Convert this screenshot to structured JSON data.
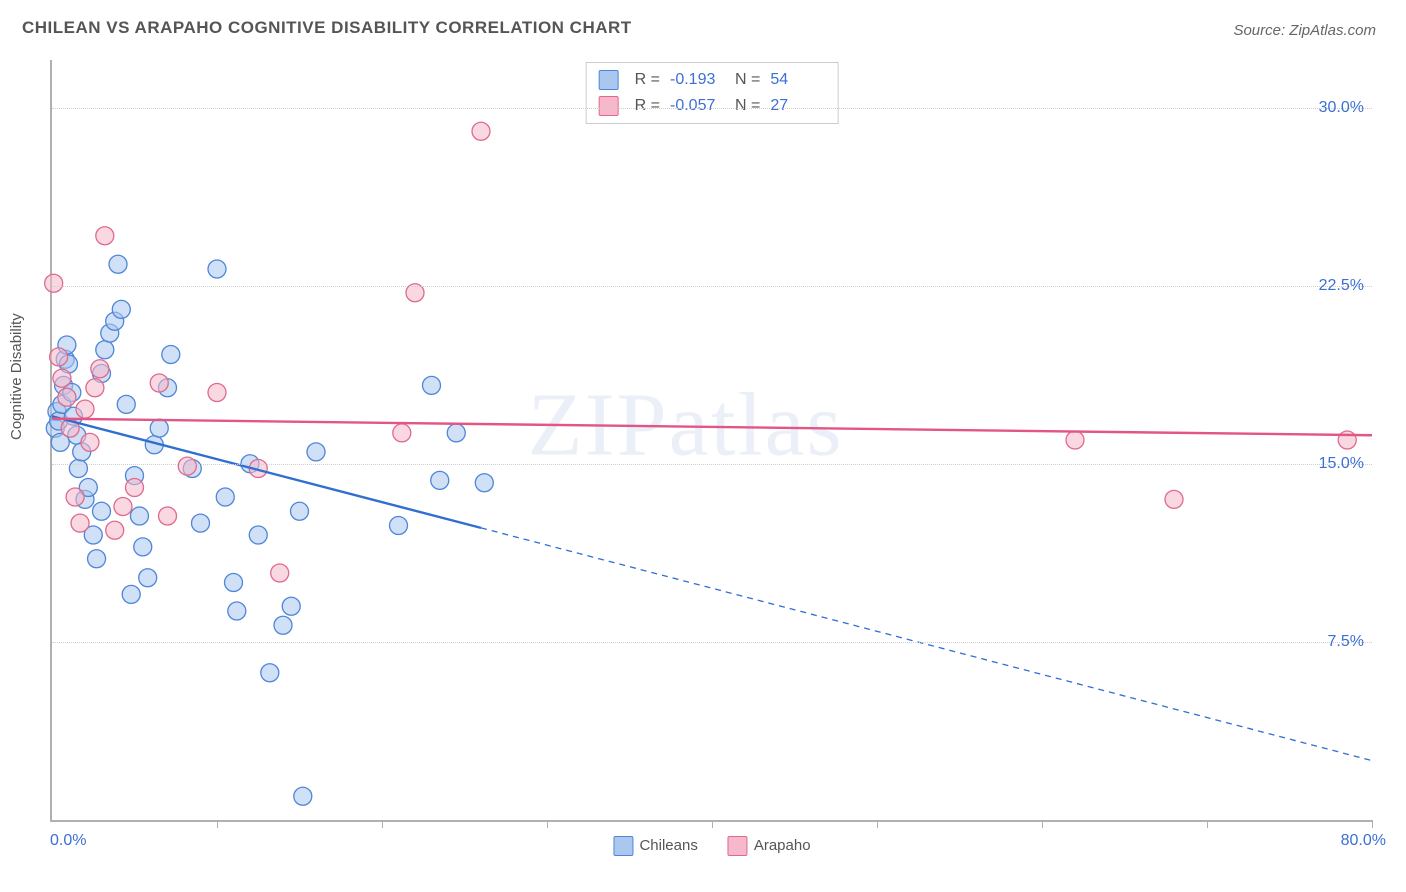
{
  "title": "CHILEAN VS ARAPAHO COGNITIVE DISABILITY CORRELATION CHART",
  "source": "Source: ZipAtlas.com",
  "watermark": "ZIPatlas",
  "chart": {
    "type": "scatter",
    "ylabel": "Cognitive Disability",
    "background_color": "#ffffff",
    "grid_color": "#cfcfcf",
    "axis_color": "#b0b0b0",
    "tick_label_color": "#3b6fd6",
    "label_color": "#555555",
    "xlim": [
      0,
      80
    ],
    "ylim": [
      0,
      32
    ],
    "xticks": [
      10,
      20,
      30,
      40,
      50,
      60,
      70,
      80
    ],
    "yticks": [
      7.5,
      15.0,
      22.5,
      30.0
    ],
    "ytick_labels": [
      "7.5%",
      "15.0%",
      "22.5%",
      "30.0%"
    ],
    "x_origin_label": "0.0%",
    "x_max_label": "80.0%",
    "marker_radius": 9,
    "marker_stroke_width": 1.3,
    "line_width_solid": 2.4,
    "line_width_dash": 1.3,
    "dash_pattern": "6,5",
    "series": [
      {
        "name": "Chileans",
        "fill": "#a9c7ef",
        "stroke": "#4f86d9",
        "fill_opacity": 0.55,
        "R": "-0.193",
        "N": "54",
        "trend": {
          "solid": {
            "x1": 0,
            "y1": 17.0,
            "x2": 26,
            "y2": 12.3
          },
          "dashed": {
            "x1": 26,
            "y1": 12.3,
            "x2": 80,
            "y2": 2.5
          },
          "color": "#2f6fd0"
        },
        "points": [
          [
            0.2,
            16.5
          ],
          [
            0.3,
            17.2
          ],
          [
            0.4,
            16.8
          ],
          [
            0.5,
            15.9
          ],
          [
            0.6,
            17.5
          ],
          [
            0.7,
            18.3
          ],
          [
            0.8,
            19.4
          ],
          [
            0.9,
            20.0
          ],
          [
            1.0,
            19.2
          ],
          [
            1.2,
            18.0
          ],
          [
            1.3,
            17.0
          ],
          [
            1.5,
            16.2
          ],
          [
            1.6,
            14.8
          ],
          [
            1.8,
            15.5
          ],
          [
            2.0,
            13.5
          ],
          [
            2.2,
            14.0
          ],
          [
            2.5,
            12.0
          ],
          [
            2.7,
            11.0
          ],
          [
            3.0,
            18.8
          ],
          [
            3.2,
            19.8
          ],
          [
            3.5,
            20.5
          ],
          [
            3.8,
            21.0
          ],
          [
            4.0,
            23.4
          ],
          [
            4.2,
            21.5
          ],
          [
            4.5,
            17.5
          ],
          [
            5.0,
            14.5
          ],
          [
            5.3,
            12.8
          ],
          [
            5.5,
            11.5
          ],
          [
            5.8,
            10.2
          ],
          [
            6.2,
            15.8
          ],
          [
            6.5,
            16.5
          ],
          [
            7.0,
            18.2
          ],
          [
            7.2,
            19.6
          ],
          [
            8.5,
            14.8
          ],
          [
            9.0,
            12.5
          ],
          [
            10.0,
            23.2
          ],
          [
            10.5,
            13.6
          ],
          [
            11.0,
            10.0
          ],
          [
            11.2,
            8.8
          ],
          [
            12.0,
            15.0
          ],
          [
            12.5,
            12.0
          ],
          [
            13.2,
            6.2
          ],
          [
            14.0,
            8.2
          ],
          [
            14.5,
            9.0
          ],
          [
            15.2,
            1.0
          ],
          [
            15.0,
            13.0
          ],
          [
            16.0,
            15.5
          ],
          [
            21.0,
            12.4
          ],
          [
            23.0,
            18.3
          ],
          [
            23.5,
            14.3
          ],
          [
            24.5,
            16.3
          ],
          [
            26.2,
            14.2
          ],
          [
            4.8,
            9.5
          ],
          [
            3.0,
            13.0
          ]
        ]
      },
      {
        "name": "Arapaho",
        "fill": "#f6b8ca",
        "stroke": "#e06a8e",
        "fill_opacity": 0.55,
        "R": "-0.057",
        "N": "27",
        "trend": {
          "solid": {
            "x1": 0,
            "y1": 16.9,
            "x2": 80,
            "y2": 16.2
          },
          "color": "#e25584"
        },
        "points": [
          [
            0.1,
            22.6
          ],
          [
            0.4,
            19.5
          ],
          [
            0.6,
            18.6
          ],
          [
            0.9,
            17.8
          ],
          [
            1.1,
            16.5
          ],
          [
            1.4,
            13.6
          ],
          [
            1.7,
            12.5
          ],
          [
            2.0,
            17.3
          ],
          [
            2.3,
            15.9
          ],
          [
            2.6,
            18.2
          ],
          [
            2.9,
            19.0
          ],
          [
            3.2,
            24.6
          ],
          [
            3.8,
            12.2
          ],
          [
            4.3,
            13.2
          ],
          [
            5.0,
            14.0
          ],
          [
            6.5,
            18.4
          ],
          [
            7.0,
            12.8
          ],
          [
            8.2,
            14.9
          ],
          [
            10.0,
            18.0
          ],
          [
            12.5,
            14.8
          ],
          [
            13.8,
            10.4
          ],
          [
            21.2,
            16.3
          ],
          [
            22.0,
            22.2
          ],
          [
            26.0,
            29.0
          ],
          [
            62.0,
            16.0
          ],
          [
            68.0,
            13.5
          ],
          [
            78.5,
            16.0
          ]
        ]
      }
    ],
    "legend_bottom": [
      {
        "swatch_fill": "#a9c7ef",
        "swatch_stroke": "#4f86d9",
        "label": "Chileans"
      },
      {
        "swatch_fill": "#f6b8ca",
        "swatch_stroke": "#e06a8e",
        "label": "Arapaho"
      }
    ],
    "statbox": {
      "rows": [
        {
          "swatch_fill": "#a9c7ef",
          "swatch_stroke": "#4f86d9",
          "r_label": "R =",
          "r_value": "-0.193",
          "n_label": "N =",
          "n_value": "54"
        },
        {
          "swatch_fill": "#f6b8ca",
          "swatch_stroke": "#e06a8e",
          "r_label": "R =",
          "r_value": "-0.057",
          "n_label": "N =",
          "n_value": "27"
        }
      ]
    }
  }
}
